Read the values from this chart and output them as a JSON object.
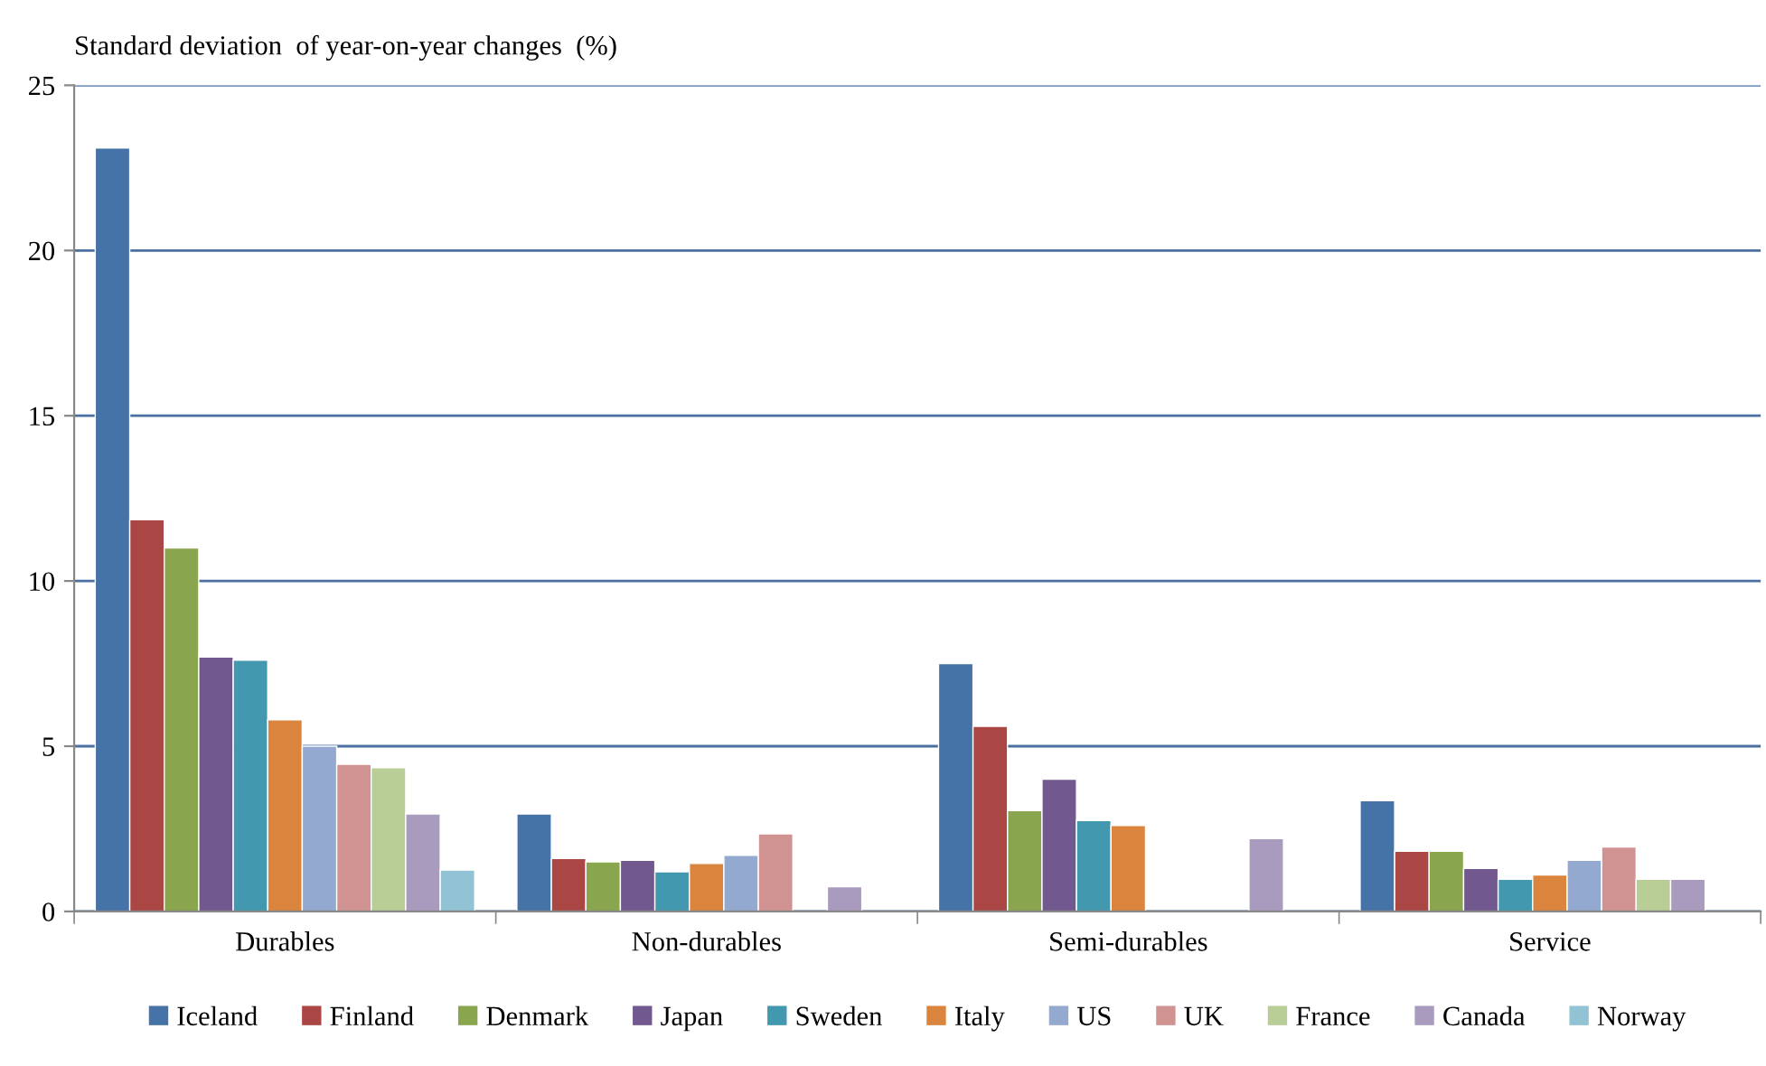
{
  "chart_data": {
    "type": "bar",
    "ylabel": "Standard deviation  of year-on-year changes  (%)",
    "categories": [
      "Durables",
      "Non-durables",
      "Semi-durables",
      "Service"
    ],
    "ylim": [
      0,
      25
    ],
    "yticks": [
      0,
      5,
      10,
      15,
      20,
      25
    ],
    "grid": "y",
    "legend": "bottom",
    "series": [
      {
        "name": "Iceland",
        "color": "#4572a7",
        "values": [
          23.1,
          2.95,
          7.5,
          3.35
        ]
      },
      {
        "name": "Finland",
        "color": "#aa4643",
        "values": [
          11.85,
          1.6,
          5.6,
          1.82
        ]
      },
      {
        "name": "Denmark",
        "color": "#89a54e",
        "values": [
          11.0,
          1.5,
          3.05,
          1.82
        ]
      },
      {
        "name": "Japan",
        "color": "#71588f",
        "values": [
          7.7,
          1.55,
          4.0,
          1.3
        ]
      },
      {
        "name": "Sweden",
        "color": "#4198af",
        "values": [
          7.6,
          1.2,
          2.75,
          0.97
        ]
      },
      {
        "name": "Italy",
        "color": "#db843d",
        "values": [
          5.8,
          1.45,
          2.6,
          1.1
        ]
      },
      {
        "name": "US",
        "color": "#93a9cf",
        "values": [
          5.0,
          1.7,
          null,
          1.55
        ]
      },
      {
        "name": "UK",
        "color": "#d19392",
        "values": [
          4.45,
          2.35,
          null,
          1.95
        ]
      },
      {
        "name": "France",
        "color": "#b9cd96",
        "values": [
          4.35,
          null,
          null,
          0.97
        ]
      },
      {
        "name": "Canada",
        "color": "#a99bbd",
        "values": [
          2.95,
          0.75,
          2.2,
          0.97
        ]
      },
      {
        "name": "Norway",
        "color": "#92c3d4",
        "values": [
          1.25,
          null,
          null,
          null
        ]
      }
    ]
  }
}
